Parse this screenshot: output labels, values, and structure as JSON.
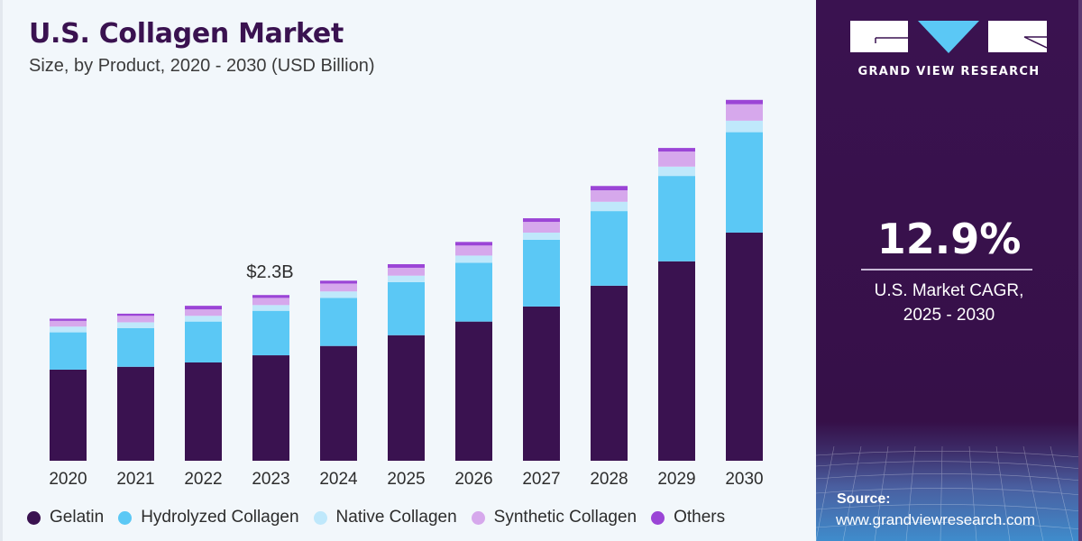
{
  "header": {
    "title": "U.S. Collagen Market",
    "subtitle": "Size, by Product, 2020 - 2030 (USD Billion)"
  },
  "colors": {
    "background": "#f2f7fb",
    "panel": "#3a1250",
    "accent": "#5bc8f5"
  },
  "chart_data": {
    "type": "bar",
    "stacked": true,
    "title": "U.S. Collagen Market",
    "subtitle": "Size, by Product, 2020 - 2030 (USD Billion)",
    "xlabel": "",
    "ylabel": "USD Billion",
    "ylim": [
      0,
      5.2
    ],
    "grid": false,
    "legend_position": "bottom",
    "categories": [
      "2020",
      "2021",
      "2022",
      "2023",
      "2024",
      "2025",
      "2026",
      "2027",
      "2028",
      "2029",
      "2030"
    ],
    "series": [
      {
        "name": "Gelatin",
        "color": "#3a1250",
        "values": [
          1.27,
          1.31,
          1.37,
          1.47,
          1.6,
          1.75,
          1.94,
          2.15,
          2.44,
          2.78,
          3.18
        ]
      },
      {
        "name": "Hydrolyzed Collagen",
        "color": "#5bc8f5",
        "values": [
          0.52,
          0.54,
          0.57,
          0.62,
          0.67,
          0.74,
          0.82,
          0.93,
          1.04,
          1.19,
          1.4
        ]
      },
      {
        "name": "Native Collagen",
        "color": "#bfe8fb",
        "values": [
          0.08,
          0.08,
          0.08,
          0.08,
          0.09,
          0.09,
          0.1,
          0.1,
          0.13,
          0.13,
          0.16
        ]
      },
      {
        "name": "Synthetic Collagen",
        "color": "#d6a8ec",
        "values": [
          0.08,
          0.09,
          0.09,
          0.1,
          0.11,
          0.11,
          0.14,
          0.15,
          0.16,
          0.21,
          0.23
        ]
      },
      {
        "name": "Others",
        "color": "#9b45d6",
        "values": [
          0.03,
          0.03,
          0.05,
          0.04,
          0.04,
          0.05,
          0.05,
          0.05,
          0.06,
          0.05,
          0.06
        ]
      }
    ],
    "annotations": [
      {
        "category": "2023",
        "text": "$2.3B"
      }
    ]
  },
  "panel": {
    "brand": "GRAND VIEW RESEARCH",
    "cagr_value": "12.9%",
    "cagr_label_line1": "U.S. Market CAGR,",
    "cagr_label_line2": "2025 - 2030",
    "source_label": "Source:",
    "source_url": "www.grandviewresearch.com"
  }
}
